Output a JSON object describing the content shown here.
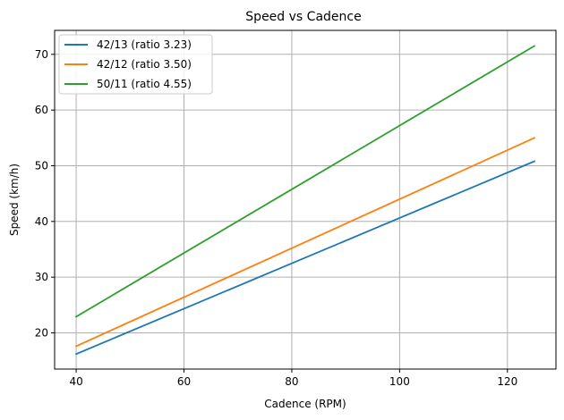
{
  "chart_data": {
    "type": "line",
    "title": "Speed vs Cadence",
    "xlabel": "Cadence (RPM)",
    "ylabel": "Speed (km/h)",
    "xlim": [
      36,
      129
    ],
    "ylim": [
      13.5,
      74.3
    ],
    "xticks": [
      40,
      60,
      80,
      100,
      120
    ],
    "yticks": [
      20,
      30,
      40,
      50,
      60,
      70
    ],
    "grid": true,
    "legend_position": "top-left",
    "x": [
      40,
      125
    ],
    "series": [
      {
        "name": "42/13 (ratio 3.23)",
        "color": "#1f77b4",
        "values": [
          16.2,
          50.8
        ]
      },
      {
        "name": "42/12 (ratio 3.50)",
        "color": "#ff7f0e",
        "values": [
          17.6,
          55.0
        ]
      },
      {
        "name": "50/11 (ratio 4.55)",
        "color": "#2ca02c",
        "values": [
          22.9,
          71.5
        ]
      }
    ]
  }
}
